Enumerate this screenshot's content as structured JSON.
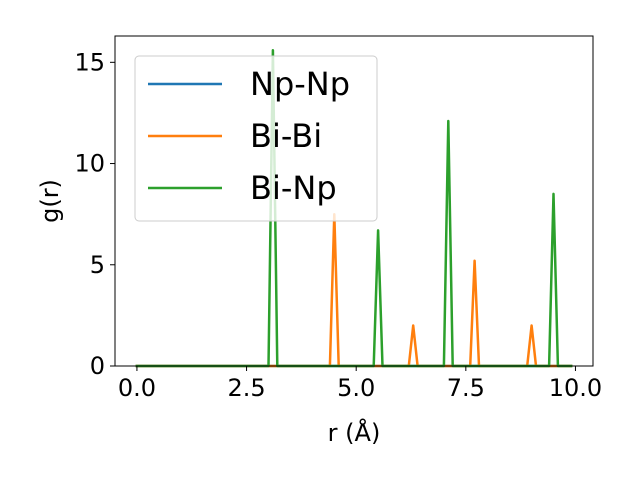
{
  "chart_data": {
    "type": "line",
    "title": "",
    "xlabel": "r (Å)",
    "ylabel": "g(r)",
    "xlim": [
      -0.5,
      10.4
    ],
    "ylim": [
      0,
      16.3
    ],
    "xticks": [
      0.0,
      2.5,
      5.0,
      7.5,
      10.0
    ],
    "xtick_labels": [
      "0.0",
      "2.5",
      "5.0",
      "7.5",
      "10.0"
    ],
    "yticks": [
      0,
      5,
      10,
      15
    ],
    "ytick_labels": [
      "0",
      "5",
      "10",
      "15"
    ],
    "grid": false,
    "legend_position": "top-left",
    "series": [
      {
        "name": "Np-Np",
        "color": "#1f77b4",
        "x": [
          0.0,
          9.9
        ],
        "y": [
          0,
          0
        ]
      },
      {
        "name": "Bi-Bi",
        "color": "#ff7f0e",
        "x": [
          0.0,
          4.4,
          4.5,
          4.6,
          6.2,
          6.3,
          6.4,
          7.6,
          7.7,
          7.8,
          8.9,
          9.0,
          9.1,
          9.9
        ],
        "y": [
          0,
          0,
          7.5,
          0,
          0,
          2.0,
          0,
          0,
          5.2,
          0,
          0,
          2.0,
          0,
          0
        ]
      },
      {
        "name": "Bi-Np",
        "color": "#2ca02c",
        "x": [
          0.0,
          3.0,
          3.1,
          3.2,
          5.4,
          5.5,
          5.6,
          7.0,
          7.1,
          7.2,
          9.4,
          9.5,
          9.6,
          9.9
        ],
        "y": [
          0,
          0,
          15.6,
          0,
          0,
          6.7,
          0,
          0,
          12.1,
          0,
          0,
          8.5,
          0,
          0
        ]
      }
    ]
  }
}
